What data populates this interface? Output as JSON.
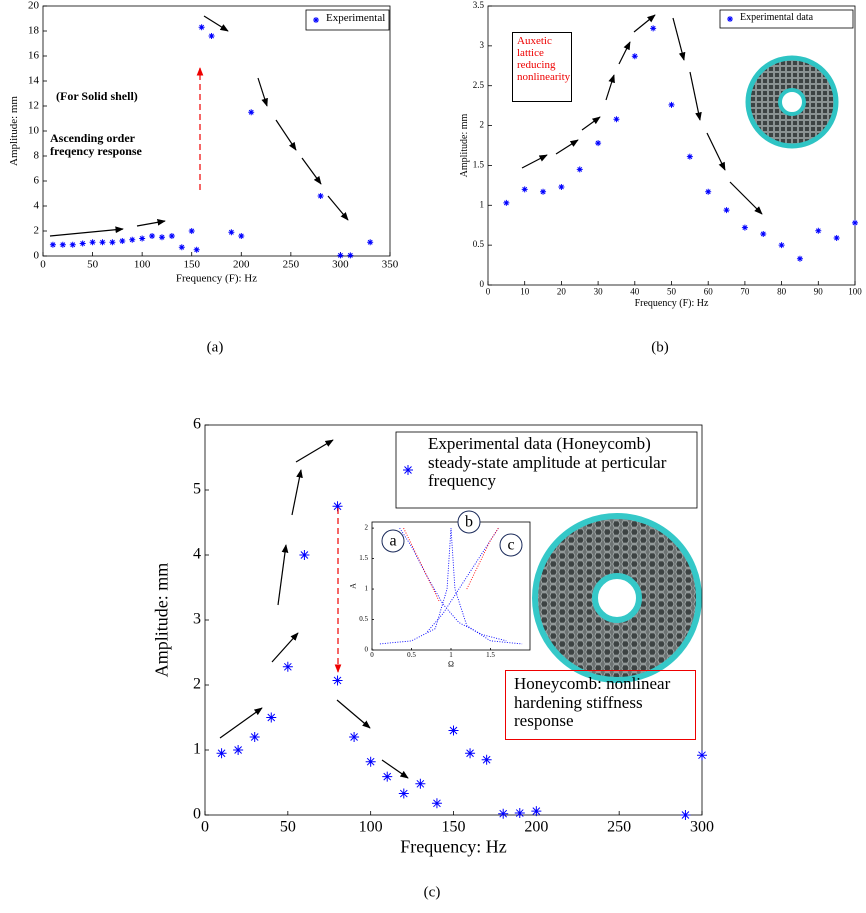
{
  "chart_data": [
    {
      "type": "scatter",
      "caption": "(a)",
      "x_label": "Frequency (F): Hz",
      "y_label": "Amplitude: mm",
      "xlim": [
        0,
        350
      ],
      "xticks": [
        0,
        50,
        100,
        150,
        200,
        250,
        300,
        350
      ],
      "ylim": [
        0,
        20
      ],
      "yticks": [
        0,
        2,
        4,
        6,
        8,
        10,
        12,
        14,
        16,
        18,
        20
      ],
      "series": [
        {
          "name": "Experimental",
          "color": "#0000ff",
          "x": [
            10,
            20,
            30,
            40,
            50,
            60,
            70,
            80,
            90,
            100,
            110,
            120,
            130,
            140,
            150,
            160,
            170,
            155,
            190,
            200,
            210,
            280,
            300,
            310,
            330
          ],
          "values": [
            0.9,
            0.9,
            0.9,
            1.0,
            1.1,
            1.1,
            1.1,
            1.2,
            1.3,
            1.4,
            1.6,
            1.5,
            1.6,
            0.7,
            2.0,
            18.3,
            17.6,
            0.5,
            1.9,
            1.6,
            11.5,
            4.8,
            0.05,
            0.05,
            1.1
          ]
        }
      ],
      "annotations": [
        "(For Solid shell)",
        "Ascending order freqency response"
      ]
    },
    {
      "type": "scatter",
      "caption": "(b)",
      "x_label": "Frequency (F): Hz",
      "y_label": "Amplitude: mm",
      "xlim": [
        0,
        100
      ],
      "xticks": [
        0,
        10,
        20,
        30,
        40,
        50,
        60,
        70,
        80,
        90,
        100
      ],
      "ylim": [
        0,
        3.5
      ],
      "yticks": [
        0,
        0.5,
        1,
        1.5,
        2,
        2.5,
        3,
        3.5
      ],
      "series": [
        {
          "name": "Experimental data",
          "color": "#0000ff",
          "x": [
            5,
            10,
            15,
            20,
            25,
            30,
            35,
            40,
            45,
            50,
            55,
            60,
            65,
            70,
            75,
            80,
            85,
            90,
            95,
            100
          ],
          "values": [
            1.03,
            1.2,
            1.17,
            1.23,
            1.45,
            1.78,
            2.08,
            2.87,
            3.22,
            2.26,
            1.61,
            1.17,
            0.94,
            0.72,
            0.64,
            0.5,
            0.33,
            0.68,
            0.59,
            0.78
          ]
        }
      ],
      "annotations": [
        "Auxetic lattice reducing nonlinearity"
      ]
    },
    {
      "type": "scatter",
      "caption": "(c)",
      "x_label": "Frequency: Hz",
      "y_label": "Amplitude: mm",
      "xlim": [
        0,
        300
      ],
      "xticks": [
        0,
        50,
        100,
        150,
        200,
        250,
        300
      ],
      "ylim": [
        0,
        6
      ],
      "yticks": [
        0,
        1,
        2,
        3,
        4,
        5,
        6
      ],
      "series": [
        {
          "name": "Experimental data (Honeycomb) steady-state amplitude at perticular frequency",
          "color": "#0000ff",
          "x": [
            10,
            20,
            30,
            40,
            50,
            60,
            80,
            80,
            90,
            100,
            110,
            120,
            130,
            140,
            150,
            160,
            170,
            180,
            190,
            200,
            290,
            300
          ],
          "values": [
            0.95,
            1.0,
            1.2,
            1.5,
            2.28,
            4.0,
            4.75,
            2.07,
            1.2,
            0.82,
            0.59,
            0.33,
            0.48,
            0.18,
            1.3,
            0.95,
            0.85,
            0.02,
            0.03,
            0.06,
            0.0,
            0.92
          ]
        }
      ],
      "annotations": [
        "Honeycomb: nonlinear hardening stiffness response"
      ]
    },
    {
      "type": "line",
      "x_label": "Ω",
      "y_label": "A",
      "xlim": [
        0,
        2
      ],
      "xticks": [
        0,
        0.5,
        1,
        1.5
      ],
      "ylim": [
        0,
        2.1
      ],
      "yticks": [
        0,
        0.5,
        1,
        1.5,
        2
      ],
      "series": [
        {
          "color": "#0000ff",
          "x": [
            0.35,
            0.5,
            0.7,
            0.9,
            1.1,
            1.4,
            1.7
          ],
          "values": [
            2.0,
            1.7,
            1.2,
            0.75,
            0.45,
            0.25,
            0.15
          ]
        },
        {
          "color": "#ff0000",
          "x": [
            0.4,
            0.55,
            0.7,
            0.85
          ],
          "values": [
            2.0,
            1.6,
            1.2,
            0.8
          ]
        },
        {
          "color": "#0000ff",
          "x": [
            0.1,
            0.5,
            0.8,
            0.95,
            1.0,
            1.05,
            1.2,
            1.5,
            1.9
          ],
          "values": [
            0.1,
            0.15,
            0.35,
            1.0,
            2.0,
            1.0,
            0.4,
            0.15,
            0.1
          ]
        },
        {
          "color": "#0000ff",
          "x": [
            0.7,
            0.9,
            1.1,
            1.3,
            1.5,
            1.6
          ],
          "values": [
            0.3,
            0.6,
            1.0,
            1.4,
            1.8,
            2.0
          ]
        },
        {
          "color": "#ff0000",
          "x": [
            1.2,
            1.35,
            1.5,
            1.6
          ],
          "values": [
            1.0,
            1.4,
            1.8,
            2.0
          ]
        }
      ],
      "annotations": [
        "a",
        "b",
        "c"
      ]
    }
  ]
}
